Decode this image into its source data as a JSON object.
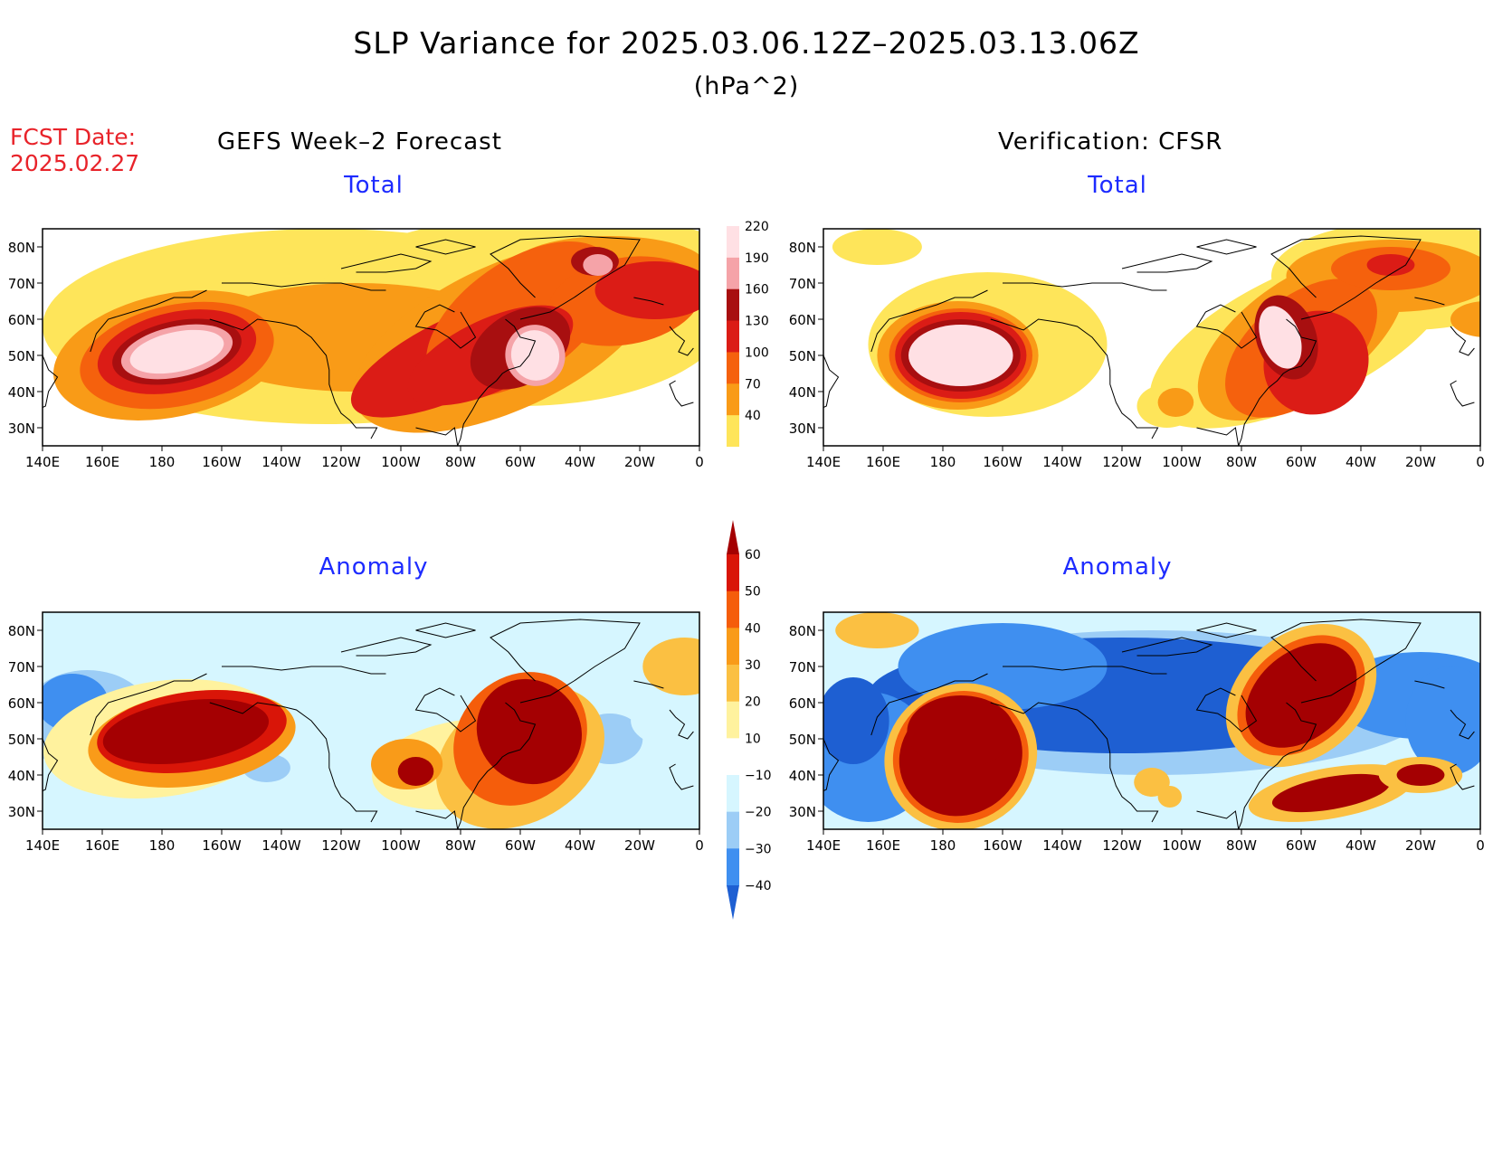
{
  "title": "SLP Variance for 2025.03.06.12Z–2025.03.13.06Z",
  "units": "(hPa^2)",
  "fcst": {
    "label": "FCST Date:",
    "date": "2025.02.27"
  },
  "columns": {
    "left": "GEFS Week–2 Forecast",
    "right": "Verification: CFSR"
  },
  "panels": [
    {
      "id": "gefs-total",
      "title": "Total"
    },
    {
      "id": "cfsr-total",
      "title": "Total"
    },
    {
      "id": "gefs-anomaly",
      "title": "Anomaly"
    },
    {
      "id": "cfsr-anomaly",
      "title": "Anomaly"
    }
  ],
  "axes": {
    "lat_labels": [
      "80N",
      "70N",
      "60N",
      "50N",
      "40N",
      "30N"
    ],
    "lat_values": [
      80,
      70,
      60,
      50,
      40,
      30
    ],
    "lon_labels": [
      "140E",
      "160E",
      "180",
      "160W",
      "140W",
      "120W",
      "100W",
      "80W",
      "60W",
      "40W",
      "20W",
      "0"
    ],
    "lon_values": [
      140,
      160,
      180,
      200,
      220,
      240,
      260,
      280,
      300,
      320,
      340,
      360
    ],
    "lat_range": [
      25,
      85
    ],
    "lon_range": [
      140,
      360
    ]
  },
  "total_scale": {
    "levels": [
      "220",
      "190",
      "160",
      "130",
      "100",
      "70",
      "40"
    ],
    "colors": [
      "#ffe0e4",
      "#f5a3a8",
      "#a80f10",
      "#db1c16",
      "#f5610d",
      "#f99b17",
      "#fee55a"
    ]
  },
  "anomaly_scale": {
    "levels": [
      "60",
      "50",
      "40",
      "30",
      "20",
      "10",
      "−10",
      "−20",
      "−30",
      "−40"
    ],
    "colors": [
      "#a40002",
      "#d91508",
      "#f55d0b",
      "#f99b19",
      "#fbc042",
      "#fff29e",
      "#ffffff",
      "#d6f6ff",
      "#9ccdf6",
      "#3f8ff0",
      "#1e5fd2"
    ]
  }
}
